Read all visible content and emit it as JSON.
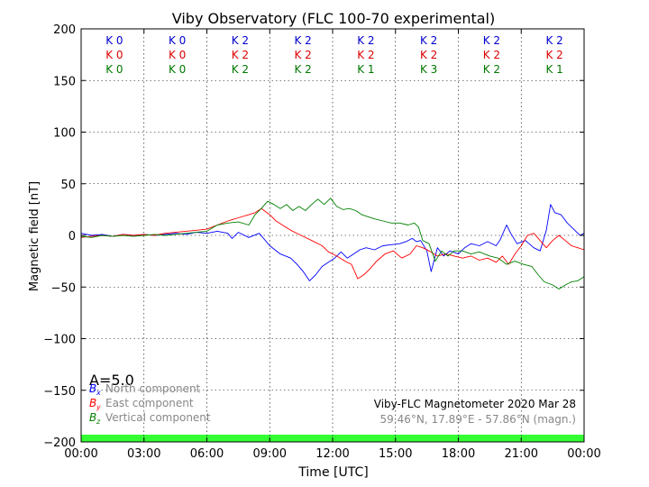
{
  "chart_data": {
    "type": "line",
    "title": "Viby Observatory (FLC 100-70 experimental)",
    "xlabel": "Time [UTC]",
    "ylabel": "Magnetic field [nT]",
    "ylim": [
      -200,
      200
    ],
    "xlim_hours": [
      0,
      24
    ],
    "x_ticks": [
      0,
      3,
      6,
      9,
      12,
      15,
      18,
      21,
      24
    ],
    "x_tick_labels": [
      "00:00",
      "03:00",
      "06:00",
      "09:00",
      "12:00",
      "15:00",
      "18:00",
      "21:00",
      "00:00"
    ],
    "y_ticks": [
      200,
      150,
      100,
      50,
      0,
      -50,
      -100,
      -150,
      -200
    ],
    "y_tick_labels": [
      "200",
      "150",
      "100",
      "50",
      "0",
      "−50",
      "−100",
      "−150",
      "−200"
    ],
    "grid": true,
    "a_index": "A=5.0",
    "k_indices": {
      "interval_centers_hours": [
        1.5,
        4.5,
        7.5,
        10.5,
        13.5,
        16.5,
        19.5,
        22.5
      ],
      "rows": [
        {
          "color": "#0000cc",
          "labels": [
            "K 0",
            "K 0",
            "K 2",
            "K 2",
            "K 2",
            "K 2",
            "K 2",
            "K 2"
          ]
        },
        {
          "color": "#dd0000",
          "labels": [
            "K 0",
            "K 0",
            "K 2",
            "K 2",
            "K 2",
            "K 2",
            "K 2",
            "K 2"
          ]
        },
        {
          "color": "#007700",
          "labels": [
            "K 0",
            "K 0",
            "K 2",
            "K 2",
            "K 1",
            "K 3",
            "K 2",
            "K 1"
          ]
        }
      ]
    },
    "legend": {
      "placement": "bottom-left",
      "entries": [
        {
          "symbol": "B",
          "subscript": "x",
          "label": "North component",
          "color": "#0000ff"
        },
        {
          "symbol": "B",
          "subscript": "y",
          "label": "East component",
          "color": "#ff0000"
        },
        {
          "symbol": "B",
          "subscript": "z",
          "label": "Vertical component",
          "color": "#008000"
        }
      ]
    },
    "info_line1": "Viby-FLC Magnetometer 2020 Mar 28",
    "info_line2": "59.46°N, 17.89°E - 57.86°N (magn.)",
    "status_band": {
      "color": "#33ff33",
      "range": [
        -200,
        -193
      ]
    },
    "series": [
      {
        "name": "North component",
        "color": "#0000ff",
        "points": [
          [
            0,
            2
          ],
          [
            0.5,
            0
          ],
          [
            1,
            1
          ],
          [
            1.5,
            -1
          ],
          [
            2,
            1
          ],
          [
            2.5,
            0
          ],
          [
            3,
            1
          ],
          [
            3.5,
            0
          ],
          [
            4,
            1
          ],
          [
            4.5,
            2
          ],
          [
            5,
            1
          ],
          [
            5.5,
            3
          ],
          [
            6,
            2
          ],
          [
            6.5,
            4
          ],
          [
            7,
            2
          ],
          [
            7.2,
            -3
          ],
          [
            7.5,
            3
          ],
          [
            8,
            -2
          ],
          [
            8.5,
            2
          ],
          [
            9,
            -10
          ],
          [
            9.5,
            -18
          ],
          [
            10,
            -22
          ],
          [
            10.3,
            -28
          ],
          [
            10.6,
            -35
          ],
          [
            10.9,
            -44
          ],
          [
            11.2,
            -38
          ],
          [
            11.5,
            -30
          ],
          [
            11.8,
            -26
          ],
          [
            12.1,
            -22
          ],
          [
            12.4,
            -16
          ],
          [
            12.7,
            -22
          ],
          [
            13,
            -18
          ],
          [
            13.3,
            -14
          ],
          [
            13.6,
            -12
          ],
          [
            14,
            -14
          ],
          [
            14.4,
            -10
          ],
          [
            14.8,
            -9
          ],
          [
            15.2,
            -8
          ],
          [
            15.5,
            -6
          ],
          [
            15.8,
            -3
          ],
          [
            16,
            -6
          ],
          [
            16.2,
            -5
          ],
          [
            16.5,
            -15
          ],
          [
            16.7,
            -35
          ],
          [
            17,
            -12
          ],
          [
            17.3,
            -20
          ],
          [
            17.6,
            -15
          ],
          [
            18,
            -18
          ],
          [
            18.3,
            -12
          ],
          [
            18.6,
            -8
          ],
          [
            19,
            -10
          ],
          [
            19.4,
            -6
          ],
          [
            19.8,
            -10
          ],
          [
            20,
            -4
          ],
          [
            20.3,
            10
          ],
          [
            20.5,
            2
          ],
          [
            20.8,
            -8
          ],
          [
            21.2,
            -5
          ],
          [
            21.6,
            -12
          ],
          [
            21.9,
            -15
          ],
          [
            22.2,
            5
          ],
          [
            22.4,
            30
          ],
          [
            22.6,
            22
          ],
          [
            22.9,
            20
          ],
          [
            23.2,
            12
          ],
          [
            23.5,
            6
          ],
          [
            23.8,
            0
          ],
          [
            24,
            2
          ]
        ]
      },
      {
        "name": "East component",
        "color": "#ff0000",
        "points": [
          [
            0,
            -2
          ],
          [
            0.5,
            -1
          ],
          [
            1,
            0
          ],
          [
            1.5,
            -1
          ],
          [
            2,
            1
          ],
          [
            2.5,
            0
          ],
          [
            3,
            1
          ],
          [
            3.5,
            0
          ],
          [
            4,
            2
          ],
          [
            4.5,
            3
          ],
          [
            5,
            4
          ],
          [
            5.5,
            5
          ],
          [
            6,
            6
          ],
          [
            6.5,
            10
          ],
          [
            7,
            14
          ],
          [
            7.5,
            17
          ],
          [
            8,
            20
          ],
          [
            8.3,
            22
          ],
          [
            8.6,
            26
          ],
          [
            9,
            20
          ],
          [
            9.3,
            14
          ],
          [
            9.6,
            10
          ],
          [
            10,
            5
          ],
          [
            10.5,
            0
          ],
          [
            11,
            -5
          ],
          [
            11.5,
            -10
          ],
          [
            11.8,
            -16
          ],
          [
            12.2,
            -20
          ],
          [
            12.6,
            -25
          ],
          [
            12.9,
            -28
          ],
          [
            13.2,
            -42
          ],
          [
            13.5,
            -38
          ],
          [
            13.8,
            -32
          ],
          [
            14.1,
            -25
          ],
          [
            14.5,
            -18
          ],
          [
            14.9,
            -15
          ],
          [
            15.3,
            -22
          ],
          [
            15.7,
            -18
          ],
          [
            16,
            -10
          ],
          [
            16.3,
            -12
          ],
          [
            16.6,
            -15
          ],
          [
            17,
            -20
          ],
          [
            17.4,
            -18
          ],
          [
            17.8,
            -20
          ],
          [
            18.2,
            -22
          ],
          [
            18.6,
            -20
          ],
          [
            19,
            -24
          ],
          [
            19.4,
            -22
          ],
          [
            19.8,
            -26
          ],
          [
            20.1,
            -20
          ],
          [
            20.4,
            -28
          ],
          [
            20.7,
            -18
          ],
          [
            21,
            -10
          ],
          [
            21.3,
            0
          ],
          [
            21.6,
            2
          ],
          [
            21.9,
            -5
          ],
          [
            22.2,
            -12
          ],
          [
            22.5,
            -5
          ],
          [
            22.8,
            0
          ],
          [
            23.1,
            -5
          ],
          [
            23.4,
            -10
          ],
          [
            23.7,
            -12
          ],
          [
            24,
            -14
          ]
        ]
      },
      {
        "name": "Vertical component",
        "color": "#008000",
        "points": [
          [
            0,
            -1
          ],
          [
            0.5,
            -2
          ],
          [
            1,
            0
          ],
          [
            1.5,
            -1
          ],
          [
            2,
            0
          ],
          [
            2.5,
            -1
          ],
          [
            3,
            0
          ],
          [
            3.5,
            1
          ],
          [
            4,
            0
          ],
          [
            4.5,
            1
          ],
          [
            5,
            2
          ],
          [
            5.5,
            3
          ],
          [
            6,
            4
          ],
          [
            6.5,
            10
          ],
          [
            7,
            12
          ],
          [
            7.5,
            13
          ],
          [
            8,
            10
          ],
          [
            8.3,
            20
          ],
          [
            8.6,
            26
          ],
          [
            8.9,
            33
          ],
          [
            9.2,
            30
          ],
          [
            9.5,
            26
          ],
          [
            9.8,
            30
          ],
          [
            10.1,
            24
          ],
          [
            10.4,
            28
          ],
          [
            10.7,
            24
          ],
          [
            11,
            30
          ],
          [
            11.3,
            35
          ],
          [
            11.6,
            30
          ],
          [
            11.9,
            36
          ],
          [
            12.2,
            28
          ],
          [
            12.5,
            25
          ],
          [
            12.8,
            26
          ],
          [
            13.1,
            24
          ],
          [
            13.4,
            20
          ],
          [
            13.7,
            18
          ],
          [
            14,
            16
          ],
          [
            14.4,
            14
          ],
          [
            14.8,
            12
          ],
          [
            15.2,
            12
          ],
          [
            15.6,
            10
          ],
          [
            15.9,
            12
          ],
          [
            16.1,
            8
          ],
          [
            16.3,
            -5
          ],
          [
            16.6,
            -8
          ],
          [
            16.9,
            -25
          ],
          [
            17.2,
            -15
          ],
          [
            17.5,
            -20
          ],
          [
            17.8,
            -15
          ],
          [
            18.2,
            -15
          ],
          [
            18.6,
            -18
          ],
          [
            19,
            -16
          ],
          [
            19.5,
            -20
          ],
          [
            19.9,
            -22
          ],
          [
            20.3,
            -28
          ],
          [
            20.7,
            -25
          ],
          [
            21.1,
            -28
          ],
          [
            21.5,
            -30
          ],
          [
            21.8,
            -38
          ],
          [
            22.1,
            -45
          ],
          [
            22.5,
            -48
          ],
          [
            22.8,
            -52
          ],
          [
            23.1,
            -48
          ],
          [
            23.4,
            -45
          ],
          [
            23.7,
            -44
          ],
          [
            24,
            -40
          ]
        ]
      }
    ]
  }
}
